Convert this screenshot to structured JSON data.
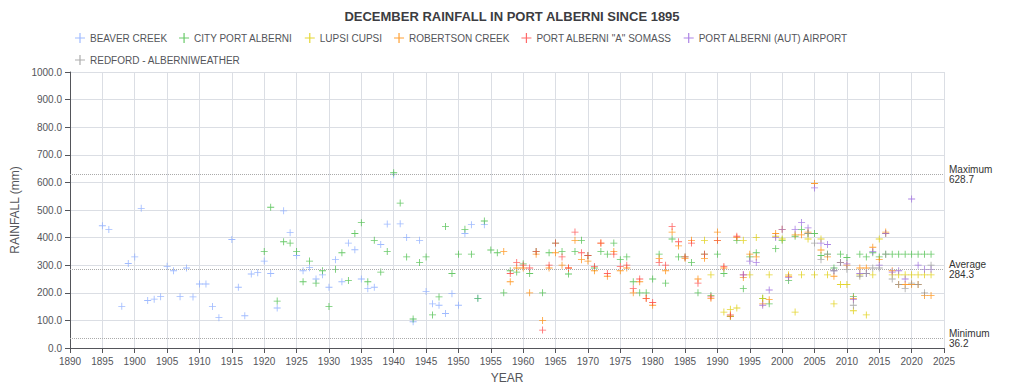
{
  "chart_data": {
    "type": "scatter",
    "title": "DECEMBER RAINFALL IN PORT ALBERNI SINCE 1895",
    "xlabel": "YEAR",
    "ylabel": "RAINFALL (mm)",
    "xlim": [
      1890,
      2025
    ],
    "ylim": [
      0,
      1000
    ],
    "xticks": [
      1890,
      1895,
      1900,
      1905,
      1910,
      1915,
      1920,
      1925,
      1930,
      1935,
      1940,
      1945,
      1950,
      1955,
      1960,
      1965,
      1970,
      1975,
      1980,
      1985,
      1990,
      1995,
      2000,
      2005,
      2010,
      2015,
      2020,
      2025
    ],
    "yticks": [
      {
        "value": 0,
        "label": "0.0"
      },
      {
        "value": 100,
        "label": "100.0"
      },
      {
        "value": 200,
        "label": "200.0"
      },
      {
        "value": 300,
        "label": "300.0"
      },
      {
        "value": 400,
        "label": "400.0"
      },
      {
        "value": 500,
        "label": "500.0"
      },
      {
        "value": 600,
        "label": "600.0"
      },
      {
        "value": 700,
        "label": "700.0"
      },
      {
        "value": 800,
        "label": "800.0"
      },
      {
        "value": 900,
        "label": "900.0"
      },
      {
        "value": 1000,
        "label": "1000.0"
      }
    ],
    "grid": true,
    "legend": "upper left",
    "marker": "plus",
    "reference_lines": [
      {
        "y": 628.7,
        "label": "Maximum",
        "value_label": "628.7",
        "color": "#aaaaaa"
      },
      {
        "y": 284.3,
        "label": "Average",
        "value_label": "284.3",
        "color": "#aaaaaa"
      },
      {
        "y": 36.2,
        "label": "Minimum",
        "value_label": "36.2",
        "color": "#aaaaaa"
      }
    ],
    "series": [
      {
        "name": "BEAVER CREEK",
        "color": "#88aaff",
        "x": [
          1895,
          1896,
          1898,
          1899,
          1900,
          1901,
          1902,
          1903,
          1904,
          1905,
          1906,
          1907,
          1908,
          1909,
          1910,
          1911,
          1912,
          1913,
          1915,
          1916,
          1917,
          1918,
          1919,
          1920,
          1921,
          1922,
          1923,
          1924,
          1925,
          1926,
          1927,
          1928,
          1929,
          1930,
          1931,
          1932,
          1933,
          1934,
          1935,
          1936,
          1937,
          1938,
          1939,
          1940,
          1941,
          1942,
          1943,
          1944,
          1945,
          1946,
          1947,
          1948,
          1949,
          1950,
          1951,
          1952,
          1953,
          1954
        ],
        "values": [
          443,
          429,
          151,
          306,
          330,
          506,
          172,
          177,
          186,
          296,
          280,
          186,
          290,
          185,
          232,
          232,
          150,
          110,
          393,
          220,
          117,
          268,
          273,
          315,
          270,
          145,
          497,
          418,
          335,
          280,
          291,
          250,
          265,
          220,
          320,
          240,
          380,
          356,
          250,
          215,
          220,
          375,
          449,
          628,
          450,
          400,
          95,
          390,
          205,
          160,
          155,
          125,
          197,
          155,
          415,
          447,
          180,
          447
        ]
      },
      {
        "name": "CITY PORT ALBERNI",
        "color": "#44bb44",
        "x": [
          1920,
          1921,
          1922,
          1923,
          1924,
          1925,
          1926,
          1927,
          1928,
          1929,
          1930,
          1931,
          1932,
          1933,
          1934,
          1935,
          1936,
          1937,
          1938,
          1939,
          1940,
          1941,
          1942,
          1943,
          1944,
          1945,
          1946,
          1947,
          1948,
          1949,
          1950,
          1951,
          1952,
          1953,
          1954,
          1955,
          1956,
          1957,
          1958,
          1959,
          1960,
          1961,
          1962,
          1963,
          1964,
          1965,
          1966,
          1967,
          1968,
          1969,
          1970,
          1971,
          1972,
          1973,
          1974,
          1975,
          1976,
          1977,
          1978,
          1979,
          1980,
          1981,
          1982,
          1983,
          1984,
          1985,
          1986,
          1987,
          1988,
          1989,
          1990,
          1991,
          1992,
          1993,
          1994,
          1995,
          1996,
          1997,
          1998,
          1999,
          2000,
          2001,
          2002,
          2003,
          2004,
          2005,
          2006,
          2007,
          2008,
          2009,
          2010,
          2011,
          2012,
          2013,
          2014,
          2015,
          2016,
          2017,
          2018,
          2019,
          2020,
          2021,
          2022,
          2023
        ],
        "values": [
          350,
          510,
          170,
          385,
          380,
          350,
          240,
          315,
          235,
          280,
          150,
          285,
          345,
          245,
          415,
          454,
          240,
          390,
          275,
          350,
          635,
          525,
          330,
          105,
          310,
          330,
          120,
          185,
          440,
          270,
          340,
          430,
          340,
          180,
          460,
          355,
          345,
          200,
          280,
          275,
          305,
          270,
          350,
          200,
          345,
          380,
          350,
          268,
          350,
          390,
          335,
          290,
          350,
          340,
          380,
          320,
          330,
          240,
          200,
          200,
          250,
          340,
          235,
          395,
          330,
          330,
          310,
          200,
          340,
          190,
          340,
          270,
          115,
          390,
          215,
          330,
          345,
          180,
          160,
          360,
          390,
          245,
          405,
          430,
          415,
          415,
          335,
          340,
          290,
          340,
          328,
          187,
          340,
          330,
          345,
          330,
          340,
          340,
          340,
          340,
          340,
          340,
          340,
          340
        ]
      },
      {
        "name": "LUPSI CUPSI",
        "color": "#ddcc00",
        "x": [
          1988,
          1989,
          1990,
          1991,
          1992,
          1993,
          1994,
          1995,
          1996,
          1997,
          1998,
          1999,
          2000,
          2001,
          2002,
          2003,
          2004,
          2005,
          2006,
          2007,
          2008,
          2009,
          2010,
          2011,
          2012,
          2013,
          2014,
          2015,
          2016,
          2017,
          2018,
          2019,
          2020,
          2021,
          2022,
          2023
        ],
        "values": [
          390,
          265,
          390,
          130,
          140,
          145,
          390,
          265,
          400,
          180,
          265,
          405,
          395,
          265,
          130,
          265,
          395,
          265,
          395,
          265,
          160,
          230,
          230,
          135,
          265,
          120,
          265,
          395,
          415,
          265,
          265,
          265,
          265,
          265,
          265,
          265
        ]
      },
      {
        "name": "ROBERTSON CREEK",
        "color": "#ff8800",
        "x": [
          1957,
          1958,
          1959,
          1960,
          1961,
          1962,
          1963,
          1964,
          1965,
          1966,
          1967,
          1968,
          1969,
          1970,
          1971,
          1972,
          1973,
          1974,
          1975,
          1976,
          1977,
          1978,
          1979,
          1980,
          1981,
          1982,
          1983,
          1984,
          1985,
          1986,
          1987,
          1988,
          1989,
          1990,
          1991,
          1992,
          1993,
          1994,
          1995,
          1996,
          1997,
          1998,
          1999,
          2000,
          2001,
          2002,
          2003,
          2004,
          2005,
          2006,
          2007,
          2008,
          2009,
          2010,
          2011,
          2012,
          2013,
          2014,
          2015,
          2016,
          2017,
          2018,
          2019,
          2020,
          2021,
          2022,
          2023
        ],
        "values": [
          350,
          240,
          290,
          290,
          200,
          340,
          100,
          290,
          345,
          300,
          290,
          390,
          320,
          315,
          280,
          380,
          260,
          350,
          280,
          290,
          200,
          240,
          180,
          155,
          325,
          280,
          420,
          370,
          325,
          390,
          250,
          325,
          180,
          420,
          290,
          115,
          400,
          255,
          340,
          330,
          160,
          175,
          415,
          430,
          260,
          410,
          410,
          420,
          596,
          355,
          330,
          260,
          310,
          300,
          180,
          290,
          290,
          365,
          320,
          420,
          280,
          230,
          230,
          230,
          230,
          190,
          190
        ]
      },
      {
        "name": "PORT ALBERNI \"A\" SOMASS",
        "color": "#ff4444",
        "x": [
          1958,
          1959,
          1960,
          1961,
          1962,
          1963,
          1964,
          1965,
          1966,
          1967,
          1968,
          1969,
          1970,
          1971,
          1972,
          1973,
          1974,
          1975,
          1976,
          1977,
          1978,
          1979,
          1980,
          1981,
          1982,
          1983,
          1984,
          1985,
          1986,
          1987,
          1988,
          1989,
          1990,
          1991,
          1992,
          1993,
          1994
        ],
        "values": [
          270,
          310,
          300,
          290,
          350,
          65,
          300,
          380,
          330,
          290,
          420,
          345,
          335,
          295,
          380,
          270,
          340,
          295,
          300,
          215,
          250,
          180,
          165,
          310,
          300,
          440,
          385,
          330,
          380,
          235,
          340,
          185,
          390,
          295,
          120,
          405,
          265
        ]
      },
      {
        "name": "PORT ALBERNI (AUT) AIRPORT",
        "color": "#9966dd",
        "x": [
          1994,
          1995,
          1996,
          1997,
          1998,
          1999,
          2000,
          2001,
          2002,
          2003,
          2004,
          2005,
          2006,
          2007,
          2008,
          2009,
          2010,
          2011,
          2012,
          2013,
          2014,
          2015,
          2016,
          2017,
          2018,
          2019,
          2020,
          2021,
          2022,
          2023
        ],
        "values": [
          265,
          315,
          310,
          155,
          210,
          400,
          430,
          255,
          430,
          455,
          435,
          580,
          380,
          375,
          280,
          310,
          305,
          175,
          270,
          270,
          350,
          300,
          415,
          275,
          280,
          250,
          540,
          300,
          285,
          285
        ]
      },
      {
        "name": "REDFORD - ALBERNIWEATHER",
        "color": "#999999",
        "x": [
          2004,
          2005,
          2006,
          2007,
          2008,
          2009,
          2010,
          2011,
          2012,
          2013,
          2014,
          2015,
          2016,
          2017,
          2018,
          2019,
          2020,
          2021,
          2022,
          2023
        ],
        "values": [
          415,
          380,
          320,
          340,
          280,
          310,
          285,
          155,
          260,
          270,
          290,
          290,
          340,
          250,
          230,
          215,
          235,
          230,
          200,
          300
        ]
      }
    ]
  }
}
